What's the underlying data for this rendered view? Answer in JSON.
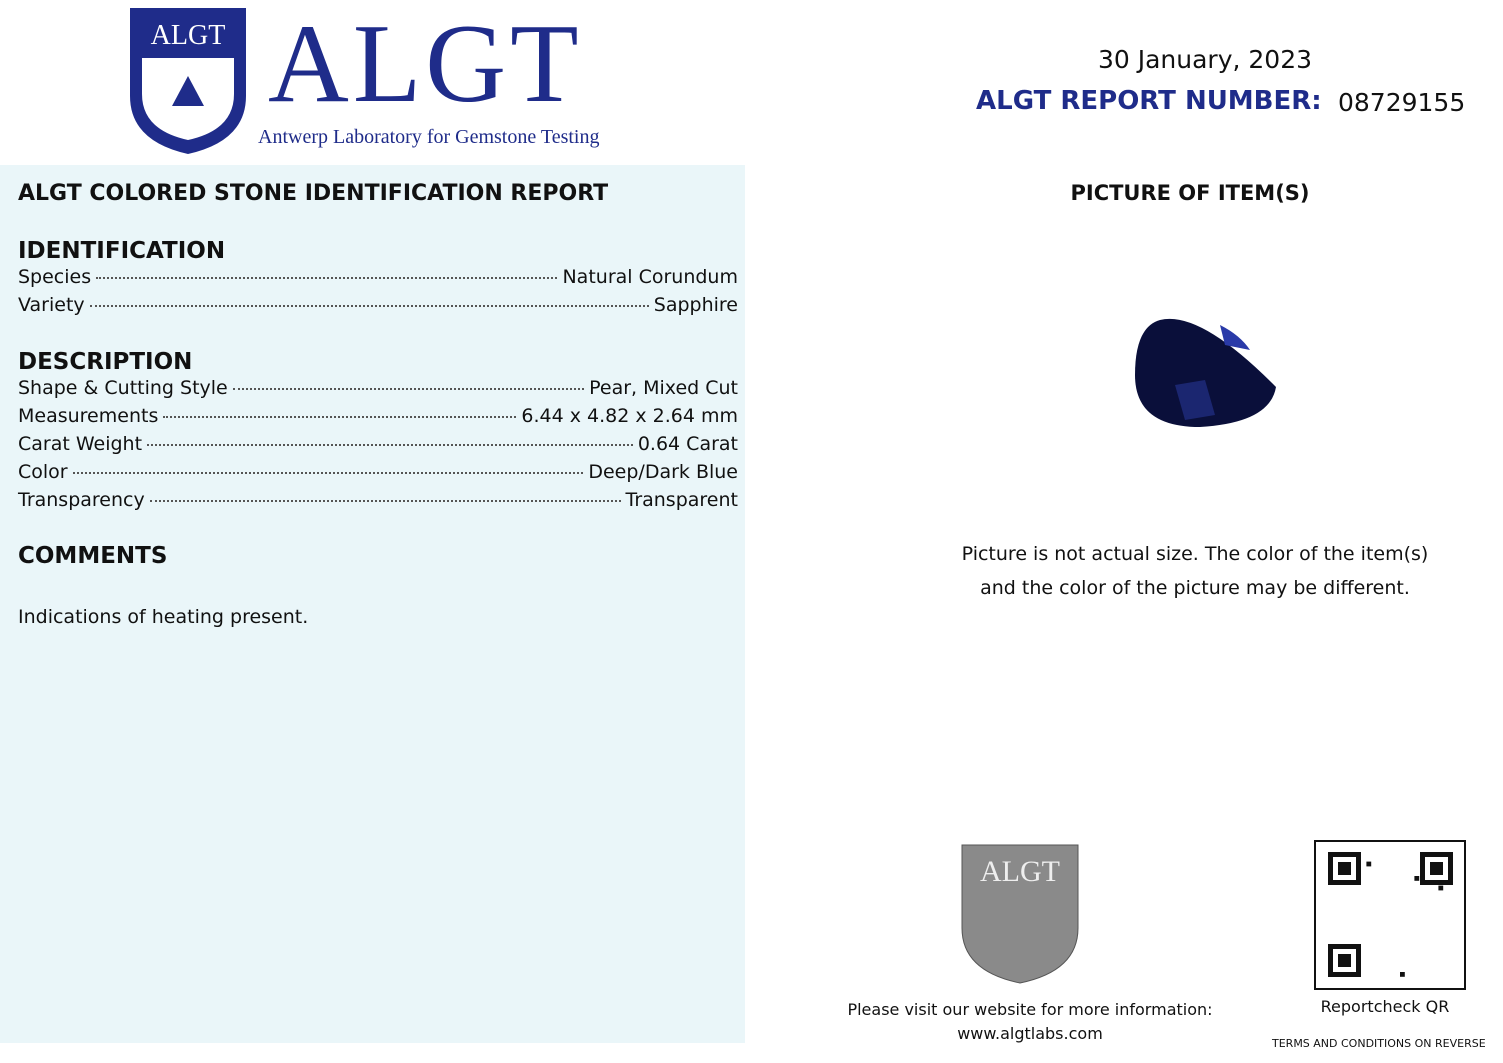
{
  "logo": {
    "shield_text": "ALGT",
    "wordmark": "ALGT",
    "tagline": "Antwerp Laboratory for Gemstone Testing"
  },
  "report": {
    "title": "ALGT COLORED STONE IDENTIFICATION REPORT",
    "identification": {
      "heading": "IDENTIFICATION",
      "rows": [
        [
          "Species",
          "Natural Corundum"
        ],
        [
          "Variety",
          "Sapphire"
        ]
      ]
    },
    "description": {
      "heading": "DESCRIPTION",
      "rows": [
        [
          "Shape & Cutting Style",
          "Pear, Mixed Cut"
        ],
        [
          "Measurements",
          "6.44 x 4.82 x 2.64 mm"
        ],
        [
          "Carat Weight",
          "0.64 Carat"
        ],
        [
          "Color",
          "Deep/Dark Blue"
        ],
        [
          "Transparency",
          "Transparent"
        ]
      ]
    },
    "comments": {
      "heading": "COMMENTS",
      "text": "Indications of heating present."
    }
  },
  "header": {
    "date": "30 January, 2023",
    "report_number_label": "ALGT REPORT NUMBER:",
    "report_number": "08729155"
  },
  "picture": {
    "heading": "PICTURE OF ITEM(S)",
    "note": [
      "Picture is not actual size. The color of the item(s)",
      "and the color of the picture may be different."
    ]
  },
  "footer": {
    "seal_text": "ALGT",
    "visit": "Please visit our website for more information:",
    "website": "www.algtlabs.com",
    "qr_label": "Reportcheck QR",
    "terms": "TERMS AND CONDITIONS ON REVERSE"
  }
}
